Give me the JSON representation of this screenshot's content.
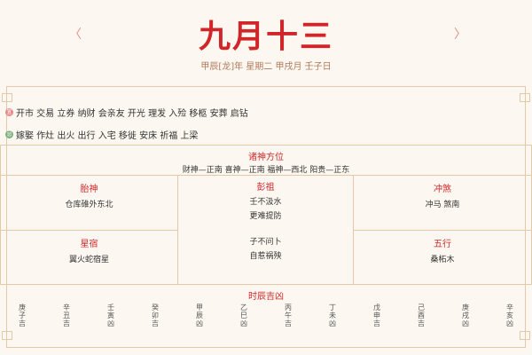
{
  "header": {
    "prev_icon": "chevron-left-icon",
    "prev": "〈",
    "next_icon": "chevron-right-icon",
    "next": "〉",
    "title": "九月十三",
    "subtitle": "甲辰[龙]年 星期二 甲戌月 壬子日"
  },
  "yi": {
    "icon": "宜",
    "color": "#e88a8a",
    "text": "开市 交易 立券 纳财 会亲友 开光 理发 入殓 移柩 安葬 启钻"
  },
  "ji": {
    "icon": "忌",
    "color": "#7fb07f",
    "text": "嫁娶 作灶 出火 出行 入宅 移徙 安床 祈福 上梁"
  },
  "gods": {
    "title": "诸神方位",
    "text": "财神—正南 喜神—正南 福神—西北 阳贵—正东"
  },
  "taishen": {
    "title": "胎神",
    "text": "仓库碓外东北"
  },
  "pengzu": {
    "title": "彭祖",
    "lines": [
      "壬不汲水",
      "更难提防",
      "子不问卜",
      "自惹祸殃"
    ]
  },
  "chongsha": {
    "title": "冲煞",
    "text": "冲马 煞南"
  },
  "xingxiu": {
    "title": "星宿",
    "text": "翼火蛇宿星"
  },
  "wuxing": {
    "title": "五行",
    "text": "桑柘木"
  },
  "hours": {
    "title": "时辰吉凶",
    "items": [
      "庚子吉",
      "辛丑吉",
      "壬寅凶",
      "癸卯吉",
      "甲辰凶",
      "乙巳凶",
      "丙午吉",
      "丁未凶",
      "戊申吉",
      "己酉吉",
      "庚戌凶",
      "辛亥凶"
    ]
  },
  "colors": {
    "accent": "#d0262a",
    "border": "#e3c9a8",
    "background": "#fcf8f1"
  }
}
